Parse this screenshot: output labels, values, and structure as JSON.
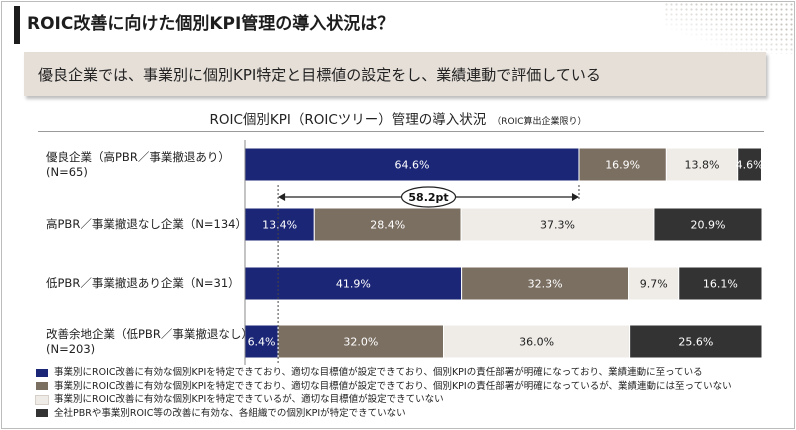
{
  "header": {
    "title": "ROIC改善に向けた個別KPI管理の導入状況は？"
  },
  "highlight": {
    "text": "優良企業では、事業別に個別KPI特定と目標値の設定をし、業績連動で評価している"
  },
  "chart_data": {
    "type": "bar",
    "orientation": "horizontal",
    "stacked": "percent",
    "title": "ROIC個別KPI（ROICツリー）管理の導入状況",
    "title_note": "（ROIC算出企業限り）",
    "categories": [
      "優良企業（高PBR／事業撤退あり）\n(N=65)",
      "高PBR／事業撤退なし企業（N=134）",
      "低PBR／事業撤退あり企業（N=31）",
      "改善余地企業（低PBR／事業撤退なし）\n(N=203)"
    ],
    "series": [
      {
        "name": "事業別にROIC改善に有効な個別KPIを特定できており、適切な目標値が設定できており、個別KPIの責任部署が明確になっており、業績連動に至っている",
        "color": "#1b2676",
        "label_color": "#ffffff",
        "values": [
          64.6,
          13.4,
          41.9,
          6.4
        ],
        "labels": [
          "64.6%",
          "13.4%",
          "41.9%",
          "6.4%"
        ]
      },
      {
        "name": "事業別にROIC改善に有効な個別KPIを特定できており、適切な目標値が設定できており、個別KPIの責任部署が明確になっているが、業績連動には至っていない",
        "color": "#7b6f62",
        "label_color": "#ffffff",
        "values": [
          16.9,
          28.4,
          32.3,
          32.0
        ],
        "labels": [
          "16.9%",
          "28.4%",
          "32.3%",
          "32.0%"
        ]
      },
      {
        "name": "事業別にROIC改善に有効な個別KPIを特定できているが、適切な目標値が設定できていない",
        "color": "#efece8",
        "label_color": "#222222",
        "values": [
          13.8,
          37.3,
          9.7,
          36.0
        ],
        "labels": [
          "13.8%",
          "37.3%",
          "9.7%",
          "36.0%"
        ]
      },
      {
        "name": "全社PBRや事業別ROIC等の改善に有効な、各組織での個別KPIが特定できていない",
        "color": "#333333",
        "label_color": "#ffffff",
        "values": [
          4.6,
          20.9,
          16.1,
          25.6
        ],
        "labels": [
          "4.6%",
          "20.9%",
          "16.1%",
          "25.6%"
        ]
      }
    ],
    "xlim": [
      0,
      100
    ],
    "annotation": {
      "label": "58.2pt",
      "from_value": 6.4,
      "to_value": 64.6
    },
    "legend_position": "bottom",
    "grid": false
  }
}
